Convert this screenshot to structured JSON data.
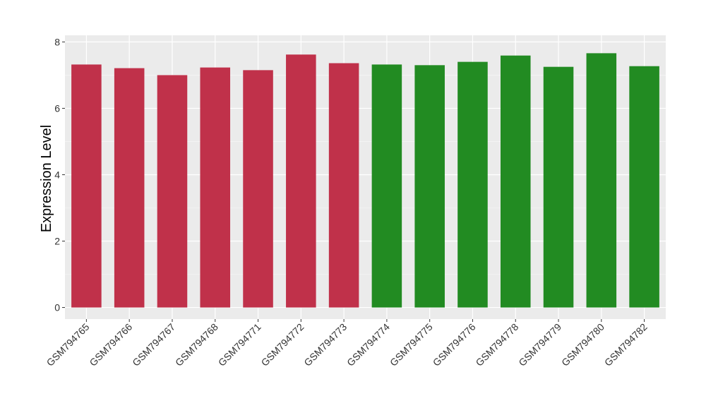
{
  "chart_data": {
    "type": "bar",
    "title": "",
    "xlabel": "",
    "ylabel": "Expression Level",
    "ylim": [
      -0.35,
      8.2
    ],
    "yticks": [
      0,
      2,
      4,
      6,
      8
    ],
    "grid": true,
    "categories": [
      "GSM794765",
      "GSM794766",
      "GSM794767",
      "GSM794768",
      "GSM794771",
      "GSM794772",
      "GSM794773",
      "GSM794774",
      "GSM794775",
      "GSM794776",
      "GSM794778",
      "GSM794779",
      "GSM794780",
      "GSM794782"
    ],
    "values": [
      7.32,
      7.21,
      7.0,
      7.23,
      7.15,
      7.62,
      7.36,
      7.32,
      7.3,
      7.4,
      7.59,
      7.25,
      7.66,
      7.27
    ],
    "groups": [
      "red",
      "red",
      "red",
      "red",
      "red",
      "red",
      "red",
      "green",
      "green",
      "green",
      "green",
      "green",
      "green",
      "green"
    ],
    "colors": {
      "red": "#C0314A",
      "green": "#228B22"
    },
    "panel_background": "#EBEBEB"
  }
}
